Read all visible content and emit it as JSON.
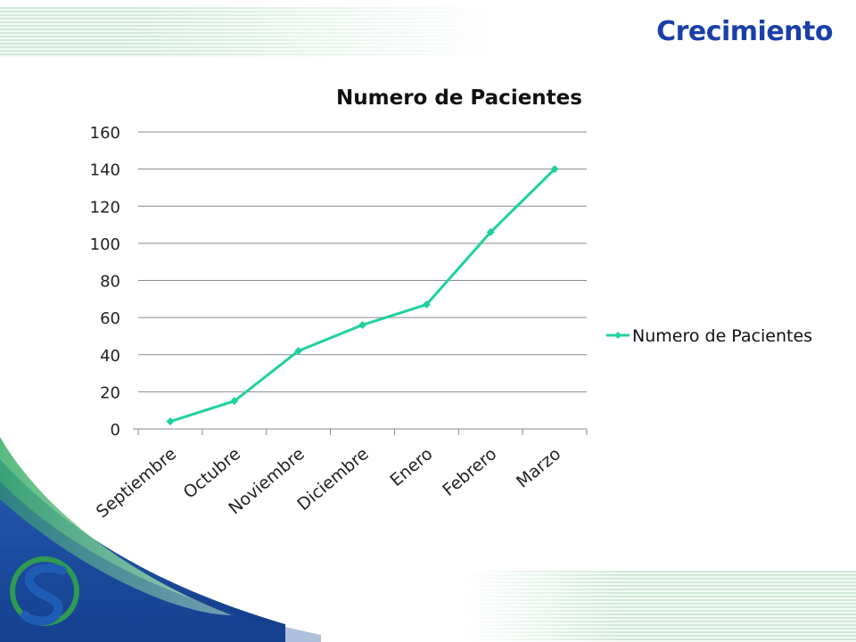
{
  "slide": {
    "title": "Crecimiento"
  },
  "colors": {
    "title": "#1b3fa8",
    "series": "#1fd1a0",
    "grid": "#8a8a8a",
    "stripes": "#cfe9d8",
    "wave_blue": "#1f4fa3",
    "wave_green": "#3cae6a",
    "logo_green": "#2f9a52",
    "logo_blue": "#1f5db5"
  },
  "icons": {
    "logo": "company-logo-s-icon"
  },
  "chart_data": {
    "type": "line",
    "title": "Numero de Pacientes",
    "xlabel": "",
    "ylabel": "",
    "categories": [
      "Septiembre",
      "Octubre",
      "Noviembre",
      "Diciembre",
      "Enero",
      "Febrero",
      "Marzo"
    ],
    "series": [
      {
        "name": "Numero de Pacientes",
        "values": [
          4,
          15,
          42,
          56,
          67,
          106,
          140
        ]
      }
    ],
    "ylim": [
      0,
      160
    ],
    "yticks": [
      0,
      20,
      40,
      60,
      80,
      100,
      120,
      140,
      160
    ],
    "grid": true,
    "legend": "right",
    "marker": "diamond"
  }
}
